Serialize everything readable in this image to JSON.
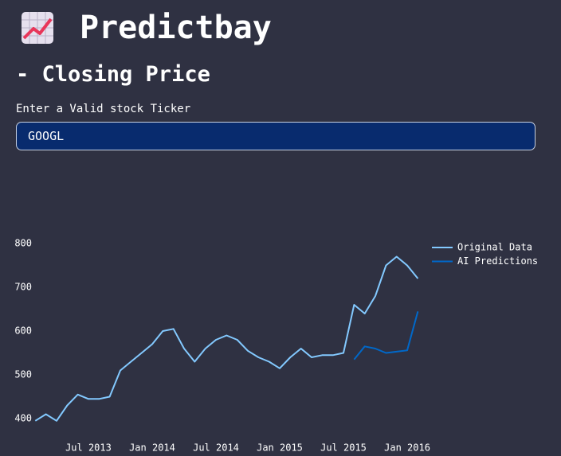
{
  "header": {
    "title": "Predictbay",
    "subtitle": "- Closing Price"
  },
  "input": {
    "label": "Enter a Valid stock Ticker",
    "value": "GOOGL"
  },
  "chart_data": {
    "type": "line",
    "x": [
      "2013-02",
      "2013-03",
      "2013-04",
      "2013-05",
      "2013-06",
      "2013-07",
      "2013-08",
      "2013-09",
      "2013-10",
      "2013-11",
      "2013-12",
      "2014-01",
      "2014-02",
      "2014-03",
      "2014-04",
      "2014-05",
      "2014-06",
      "2014-07",
      "2014-08",
      "2014-09",
      "2014-10",
      "2014-11",
      "2014-12",
      "2015-01",
      "2015-02",
      "2015-03",
      "2015-04",
      "2015-05",
      "2015-06",
      "2015-07",
      "2015-08",
      "2015-09",
      "2015-10",
      "2015-11",
      "2015-12",
      "2016-01",
      "2016-02"
    ],
    "series": [
      {
        "name": "Original Data",
        "color": "#83c9ff",
        "values": [
          395,
          410,
          395,
          430,
          455,
          445,
          445,
          450,
          510,
          530,
          550,
          570,
          600,
          605,
          560,
          530,
          560,
          580,
          590,
          580,
          555,
          540,
          530,
          515,
          540,
          560,
          540,
          545,
          545,
          550,
          660,
          640,
          680,
          750,
          770,
          750,
          720
        ]
      },
      {
        "name": "AI Predictions",
        "color": "#0068c9",
        "values": [
          null,
          null,
          null,
          null,
          null,
          null,
          null,
          null,
          null,
          null,
          null,
          null,
          null,
          null,
          null,
          null,
          null,
          null,
          null,
          null,
          null,
          null,
          null,
          null,
          null,
          null,
          null,
          null,
          null,
          null,
          535,
          565,
          560,
          550,
          553,
          556,
          645
        ]
      }
    ],
    "xlim": [
      "2013-02",
      "2016-03"
    ],
    "xticks": [
      {
        "value": "2013-07",
        "label": "Jul 2013"
      },
      {
        "value": "2014-01",
        "label": "Jan 2014"
      },
      {
        "value": "2014-07",
        "label": "Jul 2014"
      },
      {
        "value": "2015-01",
        "label": "Jan 2015"
      },
      {
        "value": "2015-07",
        "label": "Jul 2015"
      },
      {
        "value": "2016-01",
        "label": "Jan 2016"
      }
    ],
    "ylim": [
      370,
      810
    ],
    "yticks": [
      400,
      500,
      600,
      700,
      800
    ],
    "legend": "top-right"
  }
}
